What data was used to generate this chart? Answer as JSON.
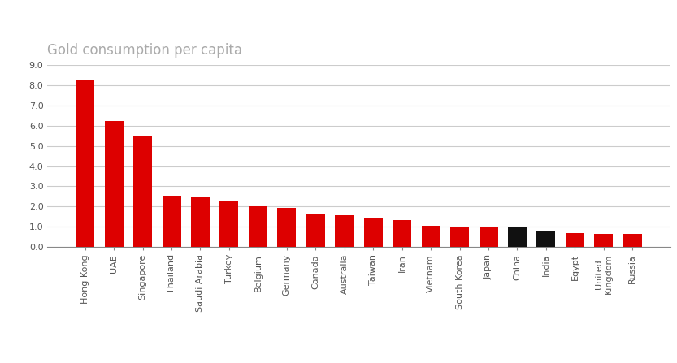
{
  "title": "Gold consumption per capita",
  "categories": [
    "Hong Kong",
    "UAE",
    "Singapore",
    "Thailand",
    "Saudi Arabia",
    "Turkey",
    "Belgium",
    "Germany",
    "Canada",
    "Australia",
    "Taiwan",
    "Iran",
    "Vietnam",
    "South Korea",
    "Japan",
    "China",
    "India",
    "Egypt",
    "United\nKingdom",
    "Russia"
  ],
  "values": [
    8.3,
    6.25,
    5.5,
    2.55,
    2.48,
    2.3,
    2.0,
    1.92,
    1.65,
    1.55,
    1.45,
    1.32,
    1.05,
    1.02,
    1.0,
    0.95,
    0.8,
    0.68,
    0.65,
    0.63
  ],
  "bar_colors": [
    "#dd0000",
    "#dd0000",
    "#dd0000",
    "#dd0000",
    "#dd0000",
    "#dd0000",
    "#dd0000",
    "#dd0000",
    "#dd0000",
    "#dd0000",
    "#dd0000",
    "#dd0000",
    "#dd0000",
    "#dd0000",
    "#dd0000",
    "#111111",
    "#111111",
    "#dd0000",
    "#dd0000",
    "#dd0000"
  ],
  "ylim": [
    0,
    9.0
  ],
  "yticks": [
    0.0,
    1.0,
    2.0,
    3.0,
    4.0,
    5.0,
    6.0,
    7.0,
    8.0,
    9.0
  ],
  "ytick_labels": [
    "0.0",
    "1.0",
    "2.0",
    "3.0",
    "4.0",
    "5.0",
    "6.0",
    "7.0",
    "8.0",
    "9.0"
  ],
  "background_color": "#ffffff",
  "grid_color": "#cccccc",
  "title_color": "#aaaaaa",
  "title_fontsize": 12,
  "tick_fontsize": 8,
  "xlabel_color": "#555555",
  "ylabel_color": "#555555"
}
